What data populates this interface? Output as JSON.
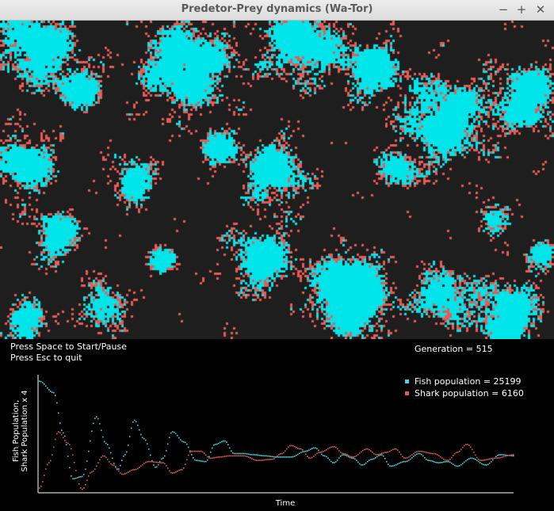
{
  "window": {
    "title": "Predetor-Prey dynamics (Wa-Tor)",
    "min_glyph": "−",
    "max_glyph": "+",
    "close_glyph": "✕"
  },
  "simulation": {
    "ocean_color": "#1e1e1e",
    "fish_color": "#00e5ea",
    "shark_color": "#ea5a55"
  },
  "status": {
    "instruction_start": "Press Space to Start/Pause",
    "instruction_quit": "Press Esc to quit",
    "generation_text": "Generation = 515"
  },
  "chart_data": {
    "type": "line",
    "title": "",
    "xlabel": "Time",
    "ylabel_line1": "Fish Population,",
    "ylabel_line2": "Shark Population x 4",
    "series": [
      {
        "name": "Fish population = 25199",
        "color": "#3fd8e0",
        "x": [
          0,
          0.03,
          0.05,
          0.07,
          0.09,
          0.12,
          0.14,
          0.165,
          0.18,
          0.2,
          0.22,
          0.245,
          0.26,
          0.28,
          0.305,
          0.33,
          0.35,
          0.37,
          0.39,
          0.41,
          0.43,
          0.45,
          0.475,
          0.5,
          0.53,
          0.56,
          0.58,
          0.6,
          0.62,
          0.64,
          0.66,
          0.68,
          0.7,
          0.72,
          0.74,
          0.77,
          0.8,
          0.82,
          0.84,
          0.86,
          0.88,
          0.91,
          0.94,
          0.97,
          1.0
        ],
        "y": [
          0.97,
          0.87,
          0.52,
          0.12,
          0.14,
          0.66,
          0.43,
          0.2,
          0.33,
          0.63,
          0.47,
          0.22,
          0.3,
          0.53,
          0.44,
          0.28,
          0.27,
          0.42,
          0.45,
          0.34,
          0.34,
          0.33,
          0.32,
          0.31,
          0.31,
          0.36,
          0.39,
          0.32,
          0.26,
          0.33,
          0.3,
          0.24,
          0.29,
          0.33,
          0.23,
          0.27,
          0.34,
          0.28,
          0.26,
          0.27,
          0.23,
          0.3,
          0.24,
          0.33,
          0.32
        ]
      },
      {
        "name": "Shark population = 6160",
        "color": "#e05a55",
        "x": [
          0,
          0.02,
          0.04,
          0.06,
          0.09,
          0.11,
          0.135,
          0.155,
          0.175,
          0.2,
          0.23,
          0.26,
          0.28,
          0.3,
          0.32,
          0.34,
          0.36,
          0.38,
          0.4,
          0.43,
          0.46,
          0.49,
          0.51,
          0.53,
          0.55,
          0.57,
          0.59,
          0.62,
          0.64,
          0.66,
          0.69,
          0.71,
          0.73,
          0.75,
          0.77,
          0.8,
          0.83,
          0.86,
          0.88,
          0.9,
          0.93,
          0.96,
          1.0
        ],
        "y": [
          0.04,
          0.26,
          0.53,
          0.43,
          0.03,
          0.18,
          0.32,
          0.24,
          0.16,
          0.2,
          0.27,
          0.26,
          0.17,
          0.2,
          0.36,
          0.36,
          0.3,
          0.31,
          0.32,
          0.32,
          0.28,
          0.29,
          0.34,
          0.41,
          0.38,
          0.3,
          0.35,
          0.4,
          0.34,
          0.31,
          0.38,
          0.33,
          0.35,
          0.38,
          0.3,
          0.36,
          0.34,
          0.28,
          0.35,
          0.42,
          0.28,
          0.3,
          0.33
        ]
      }
    ]
  }
}
